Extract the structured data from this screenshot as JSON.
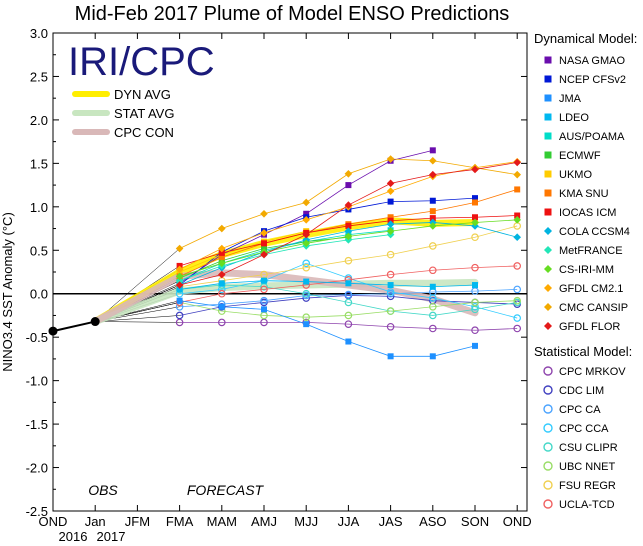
{
  "chart_data": {
    "type": "line",
    "title": "Mid-Feb 2017 Plume of Model ENSO Predictions",
    "ylabel": "NINO3.4 SST Anomaly (°C)",
    "ylim": [
      -2.5,
      3.0
    ],
    "yticks": [
      "3.0",
      "2.5",
      "2.0",
      "1.5",
      "1.0",
      "0.5",
      "0.0",
      "-0.5",
      "-1.0",
      "-1.5",
      "-2.0",
      "-2.5"
    ],
    "categories": [
      "OND",
      "Jan",
      "JFM",
      "FMA",
      "MAM",
      "AMJ",
      "MJJ",
      "JJA",
      "JAS",
      "ASO",
      "SON",
      "OND"
    ],
    "year_labels": [
      "2016",
      "2017"
    ],
    "obs_label": "OBS",
    "forecast_label": "FORECAST",
    "logo_text": "IRI/CPC",
    "observed": [
      {
        "x": "OND",
        "y": -0.43
      },
      {
        "x": "Jan",
        "y": -0.32
      }
    ],
    "averages": [
      {
        "name": "DYN AVG",
        "color": "#ffee00",
        "values": [
          0.25,
          0.45,
          0.58,
          0.68,
          0.77,
          0.84,
          0.81,
          0.82
        ]
      },
      {
        "name": "STAT AVG",
        "color": "#c8e6c0",
        "values": [
          0.03,
          0.07,
          0.09,
          0.1,
          0.11,
          0.12,
          0.12,
          0.13
        ]
      },
      {
        "name": "CPC CON",
        "color": "#d9b8b8",
        "values": [
          0.2,
          0.24,
          0.22,
          0.16,
          0.1,
          0.04,
          -0.06,
          -0.22
        ]
      }
    ],
    "dynamical_header": "Dynamical Model:",
    "statistical_header": "Statistical Model:",
    "dynamical": [
      {
        "name": "NASA GMAO",
        "color": "#6a0dad",
        "values": [
          0.12,
          0.45,
          0.68,
          0.92,
          1.25,
          1.53,
          1.65
        ]
      },
      {
        "name": "NCEP CFSv2",
        "color": "#0018d6",
        "values": [
          0.1,
          0.48,
          0.72,
          0.88,
          0.97,
          1.06,
          1.07,
          1.1
        ]
      },
      {
        "name": "JMA",
        "color": "#1e90ff",
        "values": [
          -0.08,
          -0.15,
          -0.18,
          -0.35,
          -0.55,
          -0.72,
          -0.72,
          -0.6
        ]
      },
      {
        "name": "LDEO",
        "color": "#00b8f0",
        "values": [
          0.05,
          0.12,
          0.15,
          0.14,
          0.12,
          0.1,
          0.08,
          0.1
        ]
      },
      {
        "name": "AUS/POAMA",
        "color": "#00ddc8",
        "values": [
          0.15,
          0.35,
          0.5,
          0.6,
          0.68,
          0.73
        ]
      },
      {
        "name": "ECMWF",
        "color": "#33cc33",
        "values": [
          0.18,
          0.38,
          0.52,
          0.6,
          0.65
        ]
      },
      {
        "name": "UKMO",
        "color": "#ffcc00",
        "values": [
          0.25,
          0.45,
          0.6,
          0.72
        ]
      },
      {
        "name": "KMA SNU",
        "color": "#ff7700",
        "values": [
          0.2,
          0.42,
          0.58,
          0.7,
          0.8,
          0.88,
          0.95,
          1.05,
          1.2
        ]
      },
      {
        "name": "IOCAS ICM",
        "color": "#ee1111",
        "values": [
          0.32,
          0.47,
          0.58,
          0.7,
          0.78,
          0.84,
          0.87,
          0.88,
          0.9
        ]
      },
      {
        "name": "COLA CCSM4",
        "color": "#00b4e0",
        "values": [
          0.1,
          0.3,
          0.48,
          0.62,
          0.72,
          0.8,
          0.82,
          0.78,
          0.65
        ]
      },
      {
        "name": "MetFRANCE",
        "color": "#22e6b8",
        "values": [
          0.15,
          0.32,
          0.45,
          0.55,
          0.62,
          0.68
        ]
      },
      {
        "name": "CS-IRI-MM",
        "color": "#66dd22",
        "values": [
          0.2,
          0.35,
          0.48,
          0.58,
          0.66,
          0.72,
          0.78,
          0.82,
          0.85
        ]
      },
      {
        "name": "GFDL CM2.1",
        "color": "#ffaa00",
        "values": [
          0.28,
          0.52,
          0.7,
          0.85,
          1.0,
          1.18,
          1.35,
          1.45,
          1.52
        ]
      },
      {
        "name": "CMC CANSIP",
        "color": "#f2a900",
        "values": [
          0.52,
          0.75,
          0.92,
          1.05,
          1.38,
          1.55,
          1.53,
          1.45,
          1.37
        ]
      },
      {
        "name": "GFDL FLOR",
        "color": "#e41a1a",
        "values": [
          0.1,
          0.22,
          0.45,
          0.68,
          1.02,
          1.27,
          1.37,
          1.43,
          1.51
        ]
      }
    ],
    "statistical": [
      {
        "name": "CPC MRKOV",
        "color": "#8e44ad",
        "values": [
          -0.33,
          -0.33,
          -0.33,
          -0.33,
          -0.35,
          -0.38,
          -0.4,
          -0.42,
          -0.4
        ]
      },
      {
        "name": "CDC LIM",
        "color": "#4040c0",
        "values": [
          -0.25,
          -0.15,
          -0.1,
          -0.05,
          -0.02,
          -0.03,
          -0.08,
          -0.1,
          -0.12
        ]
      },
      {
        "name": "CPC CA",
        "color": "#4aa3ff",
        "values": [
          -0.15,
          -0.12,
          -0.08,
          -0.02,
          -0.01,
          0.0,
          0.02,
          0.03,
          0.05
        ]
      },
      {
        "name": "CPC CCA",
        "color": "#33ccff",
        "values": [
          0.0,
          0.05,
          0.15,
          0.35,
          0.18,
          0.02,
          -0.05,
          -0.15,
          -0.28
        ]
      },
      {
        "name": "CSU CLIPR",
        "color": "#44d8c8",
        "values": [
          0.05,
          0.1,
          0.08,
          0.0,
          -0.1,
          -0.2,
          -0.25,
          -0.18,
          -0.1
        ]
      },
      {
        "name": "UBC NNET",
        "color": "#99dd66",
        "values": [
          -0.1,
          -0.2,
          -0.25,
          -0.27,
          -0.25,
          -0.2,
          -0.15,
          -0.1,
          -0.08
        ]
      },
      {
        "name": "FSU REGR",
        "color": "#f0d050",
        "values": [
          0.08,
          0.15,
          0.22,
          0.3,
          0.38,
          0.45,
          0.55,
          0.65,
          0.78
        ]
      },
      {
        "name": "UCLA-TCD",
        "color": "#f06060",
        "values": [
          -0.1,
          0.0,
          0.05,
          0.1,
          0.16,
          0.22,
          0.27,
          0.3,
          0.32
        ]
      }
    ],
    "grid": false,
    "legend": "right"
  }
}
